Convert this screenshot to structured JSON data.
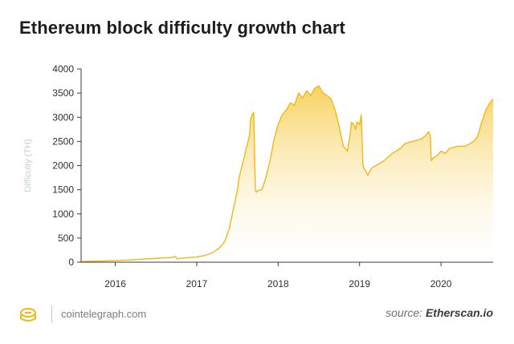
{
  "title": "Ethereum block difficulty growth chart",
  "footer": {
    "site": "cointelegraph.com",
    "source_prefix": "source: ",
    "source_name": "Etherscan.io",
    "logo_icon": "cointelegraph-logo-icon"
  },
  "colors": {
    "line": "#f0b817",
    "fill_top": "#f7cf55",
    "fill_bottom": "#ffffff",
    "axis": "#3b3b3b",
    "ylabel": "#c5ccd8"
  },
  "chart_data": {
    "type": "area",
    "title": "Ethereum block difficulty growth chart",
    "xlabel": "",
    "ylabel": "Difficulty (TH)",
    "grid": false,
    "xlim": [
      2015.58,
      2020.64
    ],
    "ylim": [
      0,
      4000
    ],
    "yticks": [
      0,
      500,
      1000,
      1500,
      2000,
      2500,
      3000,
      3500,
      4000
    ],
    "xticks": [
      {
        "value": 2016,
        "label": "2016"
      },
      {
        "value": 2017,
        "label": "2017"
      },
      {
        "value": 2018,
        "label": "2018"
      },
      {
        "value": 2019,
        "label": "2019"
      },
      {
        "value": 2020,
        "label": "2020"
      }
    ],
    "series": [
      {
        "name": "Difficulty",
        "x": [
          2015.58,
          2015.7,
          2015.85,
          2016.0,
          2016.15,
          2016.3,
          2016.45,
          2016.6,
          2016.7,
          2016.74,
          2016.76,
          2016.8,
          2016.9,
          2017.0,
          2017.1,
          2017.2,
          2017.25,
          2017.3,
          2017.35,
          2017.4,
          2017.45,
          2017.5,
          2017.52,
          2017.55,
          2017.58,
          2017.6,
          2017.63,
          2017.65,
          2017.66,
          2017.68,
          2017.7,
          2017.72,
          2017.73,
          2017.75,
          2017.8,
          2017.85,
          2017.9,
          2017.95,
          2018.0,
          2018.05,
          2018.1,
          2018.15,
          2018.2,
          2018.25,
          2018.3,
          2018.35,
          2018.4,
          2018.45,
          2018.5,
          2018.55,
          2018.6,
          2018.65,
          2018.7,
          2018.75,
          2018.8,
          2018.85,
          2018.88,
          2018.9,
          2018.93,
          2018.95,
          2018.97,
          2019.0,
          2019.02,
          2019.04,
          2019.05,
          2019.07,
          2019.1,
          2019.15,
          2019.2,
          2019.3,
          2019.4,
          2019.5,
          2019.55,
          2019.6,
          2019.65,
          2019.7,
          2019.75,
          2019.8,
          2019.85,
          2019.87,
          2019.88,
          2019.9,
          2019.95,
          2020.0,
          2020.05,
          2020.1,
          2020.2,
          2020.3,
          2020.4,
          2020.45,
          2020.5,
          2020.55,
          2020.6,
          2020.64
        ],
        "values": [
          15,
          20,
          25,
          35,
          45,
          60,
          75,
          90,
          100,
          120,
          70,
          80,
          95,
          110,
          140,
          200,
          260,
          330,
          450,
          700,
          1100,
          1500,
          1750,
          1950,
          2150,
          2300,
          2500,
          2650,
          2950,
          3050,
          3100,
          1500,
          1450,
          1480,
          1500,
          1750,
          2100,
          2550,
          2850,
          3050,
          3150,
          3300,
          3250,
          3500,
          3400,
          3550,
          3450,
          3600,
          3650,
          3500,
          3450,
          3380,
          3150,
          2800,
          2400,
          2300,
          2600,
          2900,
          2850,
          2750,
          2900,
          2850,
          3050,
          2050,
          1950,
          1900,
          1800,
          1950,
          2000,
          2100,
          2250,
          2350,
          2450,
          2480,
          2500,
          2520,
          2550,
          2600,
          2700,
          2600,
          2100,
          2150,
          2200,
          2300,
          2250,
          2350,
          2400,
          2400,
          2500,
          2600,
          2900,
          3150,
          3300,
          3380
        ]
      }
    ]
  }
}
